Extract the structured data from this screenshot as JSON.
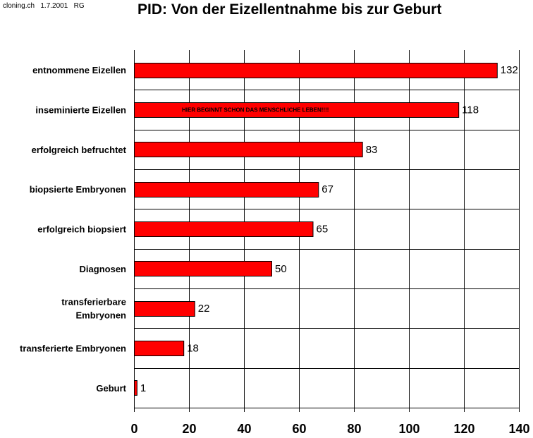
{
  "header": {
    "credit": "cloning.ch   1.7.2001   RG"
  },
  "chart_data": {
    "type": "bar",
    "orientation": "horizontal",
    "title": "PID: Von der Eizellentnahme bis zur Geburt",
    "categories": [
      [
        "entnommene Eizellen"
      ],
      [
        "inseminierte Eizellen"
      ],
      [
        "erfolgreich befruchtet"
      ],
      [
        "biopsierte Embryonen"
      ],
      [
        "erfolgreich biopsiert"
      ],
      [
        "Diagnosen"
      ],
      [
        "transferierbare",
        "Embryonen"
      ],
      [
        "transferierte Embryonen"
      ],
      [
        "Geburt"
      ]
    ],
    "values": [
      132,
      118,
      83,
      67,
      65,
      50,
      22,
      18,
      1
    ],
    "xlim": [
      0,
      140
    ],
    "xticks": [
      0,
      20,
      40,
      60,
      80,
      100,
      120,
      140
    ],
    "grid": "vertical",
    "bar_color": "#ff0000",
    "annotations": [
      {
        "text": "HIER BEGINNT SCHON DAS MENSCHLICHE LEBEN!!!!",
        "category_index": 1
      }
    ]
  }
}
